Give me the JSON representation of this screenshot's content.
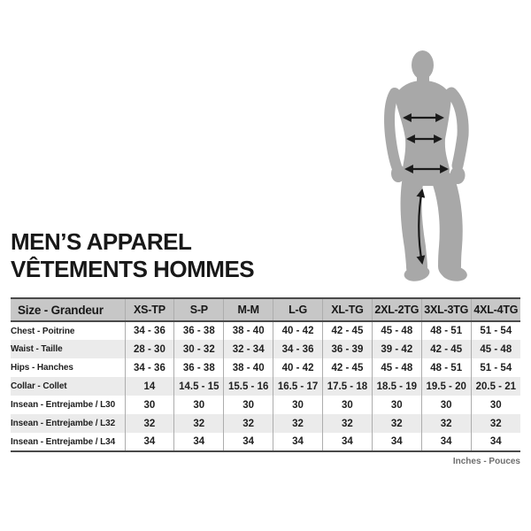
{
  "title": {
    "line1": "MEN’S APPAREL",
    "line2": "VÊTEMENTS HOMMES"
  },
  "figure": {
    "subject": "male-body-silhouette",
    "measurement_arrows": [
      "chest",
      "waist",
      "hips",
      "inseam"
    ]
  },
  "chart_data": {
    "type": "table",
    "title": "MEN’S APPAREL / VÊTEMENTS HOMMES",
    "columns": [
      "Size - Grandeur",
      "XS-TP",
      "S-P",
      "M-M",
      "L-G",
      "XL-TG",
      "2XL-2TG",
      "3XL-3TG",
      "4XL-4TG"
    ],
    "rows": [
      {
        "label": "Chest - Poitrine",
        "values": [
          "34 - 36",
          "36 - 38",
          "38 - 40",
          "40 - 42",
          "42 - 45",
          "45 - 48",
          "48 - 51",
          "51 - 54"
        ]
      },
      {
        "label": "Waist - Taille",
        "values": [
          "28 - 30",
          "30 - 32",
          "32 - 34",
          "34 - 36",
          "36 - 39",
          "39 - 42",
          "42 - 45",
          "45 - 48"
        ]
      },
      {
        "label": "Hips - Hanches",
        "values": [
          "34 - 36",
          "36 - 38",
          "38 - 40",
          "40 - 42",
          "42 - 45",
          "45 - 48",
          "48 - 51",
          "51 - 54"
        ]
      },
      {
        "label": "Collar - Collet",
        "values": [
          "14",
          "14.5 - 15",
          "15.5 - 16",
          "16.5 - 17",
          "17.5 - 18",
          "18.5 - 19",
          "19.5 - 20",
          "20.5 - 21"
        ]
      },
      {
        "label": "Insean - Entrejambe / L30",
        "values": [
          "30",
          "30",
          "30",
          "30",
          "30",
          "30",
          "30",
          "30"
        ]
      },
      {
        "label": "Insean - Entrejambe / L32",
        "values": [
          "32",
          "32",
          "32",
          "32",
          "32",
          "32",
          "32",
          "32"
        ]
      },
      {
        "label": "Insean - Entrejambe / L34",
        "values": [
          "34",
          "34",
          "34",
          "34",
          "34",
          "34",
          "34",
          "34"
        ]
      }
    ],
    "units": "Inches - Pouces"
  },
  "colors": {
    "silhouette": "#a8a8a8",
    "arrow": "#1a1a1a",
    "header_bg": "#c7c7c7",
    "row_alt_bg": "#ebebeb",
    "border_dark": "#4a4a4a",
    "divider": "#adadad",
    "text": "#1f1f1f",
    "footnote_text": "#6e6e6e"
  }
}
